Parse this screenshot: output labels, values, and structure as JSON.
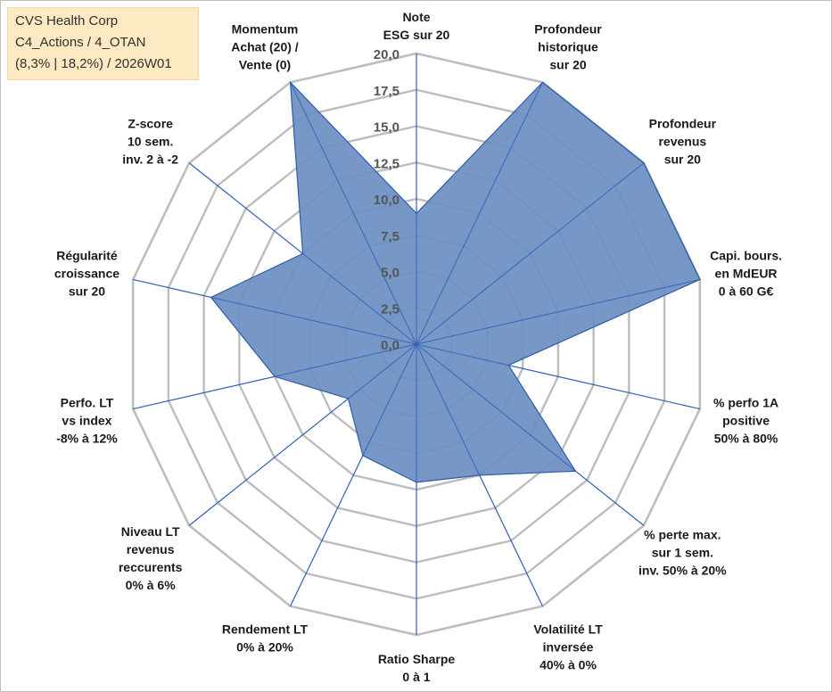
{
  "info": {
    "line1": "CVS Health Corp",
    "line2": "C4_Actions / 4_OTAN",
    "line3": "(8,3% | 18,2%) / 2026W01"
  },
  "colors": {
    "area_fill": "#6b8fc2",
    "area_stroke": "#2e5ca8",
    "grid": "#bdbdbd",
    "spoke": "#2f5fb8"
  },
  "chart_data": {
    "type": "radar",
    "rmin": 0,
    "rmax": 20,
    "tick_step": 2.5,
    "tick_labels": [
      "0,0",
      "2,5",
      "5,0",
      "7,5",
      "10,0",
      "12,5",
      "15,0",
      "17,5",
      "20,0"
    ],
    "axes": [
      {
        "label": [
          "Note",
          "ESG sur 20"
        ],
        "value": 9
      },
      {
        "label": [
          "Profondeur",
          "historique",
          "sur 20"
        ],
        "value": 20
      },
      {
        "label": [
          "Profondeur",
          "revenus",
          "sur 20"
        ],
        "value": 20
      },
      {
        "label": [
          "Capi. bours.",
          "en MdEUR",
          "0 à 60 G€"
        ],
        "value": 20
      },
      {
        "label": [
          "% perfo 1A",
          "positive",
          "50% à 80%"
        ],
        "value": 6.5
      },
      {
        "label": [
          "% perte max.",
          "sur 1 sem.",
          "inv. 50% à 20%"
        ],
        "value": 14
      },
      {
        "label": [
          "Volatilité LT",
          "inversée",
          "40% à 0%"
        ],
        "value": 10
      },
      {
        "label": [
          "Ratio Sharpe",
          "0 à 1"
        ],
        "value": 9.5
      },
      {
        "label": [
          "Rendement LT",
          "0% à 20%"
        ],
        "value": 8.5
      },
      {
        "label": [
          "Niveau LT",
          "revenus",
          "reccurents",
          "0% à 6%"
        ],
        "value": 6
      },
      {
        "label": [
          "Perfo. LT",
          "vs index",
          "-8% à 12%"
        ],
        "value": 10
      },
      {
        "label": [
          "Régularité",
          "croissance",
          "sur 20"
        ],
        "value": 14.5
      },
      {
        "label": [
          "Z-score",
          "10 sem.",
          "inv. 2 à -2"
        ],
        "value": 10
      },
      {
        "label": [
          "Momentum",
          "Achat (20) /",
          "Vente (0)"
        ],
        "value": 20
      }
    ]
  }
}
